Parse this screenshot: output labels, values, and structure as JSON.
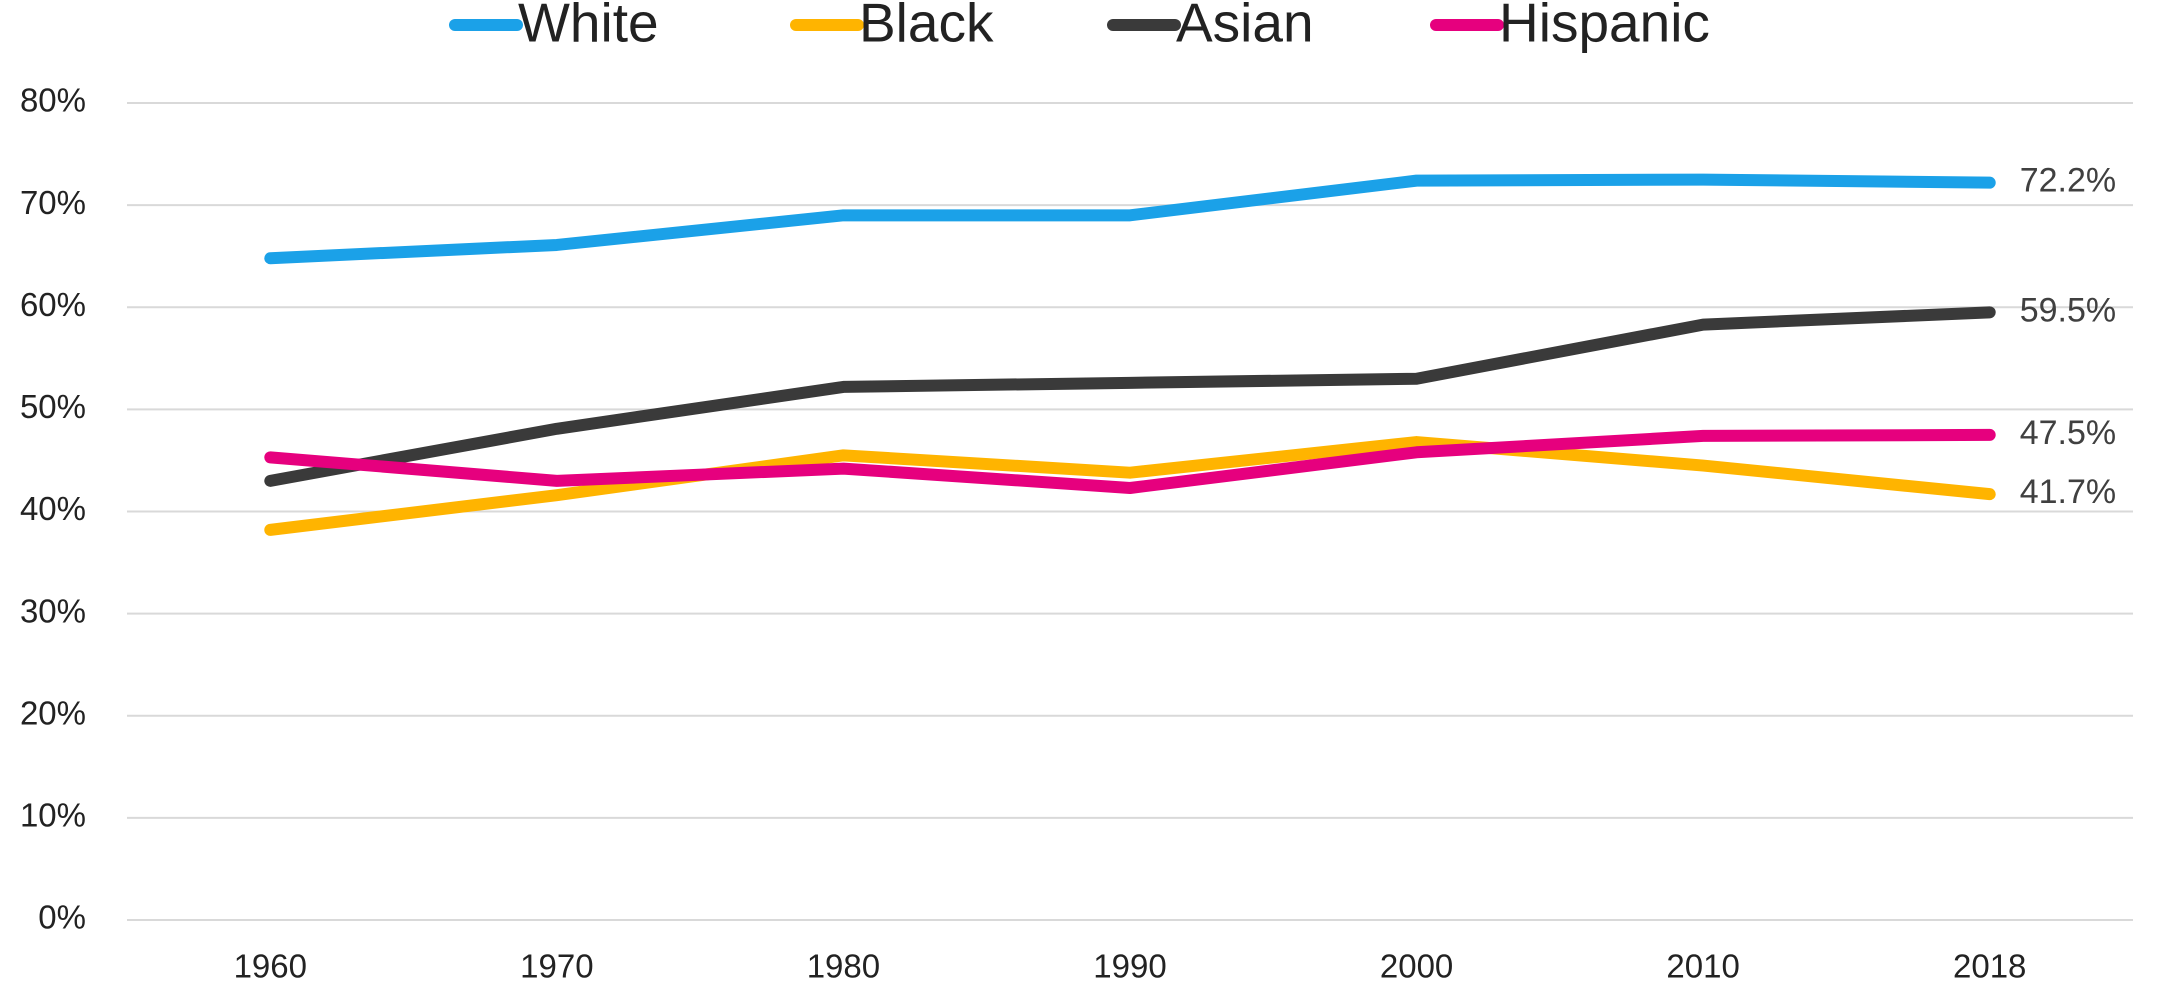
{
  "chart_data": {
    "type": "line",
    "categories": [
      "1960",
      "1970",
      "1980",
      "1990",
      "2000",
      "2010",
      "2018"
    ],
    "series": [
      {
        "name": "White",
        "color": "#1ba1e8",
        "values": [
          64.8,
          66.1,
          69.0,
          69.0,
          72.4,
          72.5,
          72.2
        ],
        "value_labels": [
          null,
          null,
          null,
          null,
          null,
          null,
          "72.2%"
        ]
      },
      {
        "name": "Black",
        "color": "#ffb400",
        "values": [
          38.2,
          41.6,
          45.5,
          43.8,
          46.8,
          44.5,
          41.7
        ],
        "value_labels": [
          null,
          null,
          null,
          null,
          null,
          null,
          "41.7%"
        ]
      },
      {
        "name": "Asian",
        "color": "#3a3a3a",
        "values": [
          43.0,
          48.1,
          52.2,
          52.6,
          53.0,
          58.3,
          59.5
        ],
        "value_labels": [
          null,
          null,
          null,
          null,
          null,
          null,
          "59.5%"
        ]
      },
      {
        "name": "Hispanic",
        "color": "#e6007e",
        "values": [
          45.3,
          43.0,
          44.2,
          42.3,
          45.8,
          47.4,
          47.5
        ],
        "value_labels": [
          null,
          null,
          null,
          null,
          null,
          null,
          "47.5%"
        ]
      }
    ],
    "ylim": [
      0,
      80
    ],
    "yticks": [
      {
        "value": 0,
        "label": "0%"
      },
      {
        "value": 10,
        "label": "10%"
      },
      {
        "value": 20,
        "label": "20%"
      },
      {
        "value": 30,
        "label": "30%"
      },
      {
        "value": 40,
        "label": "40%"
      },
      {
        "value": 50,
        "label": "50%"
      },
      {
        "value": 60,
        "label": "60%"
      },
      {
        "value": 70,
        "label": "70%"
      },
      {
        "value": 80,
        "label": "80%"
      }
    ],
    "grid": true,
    "legend": "top"
  }
}
